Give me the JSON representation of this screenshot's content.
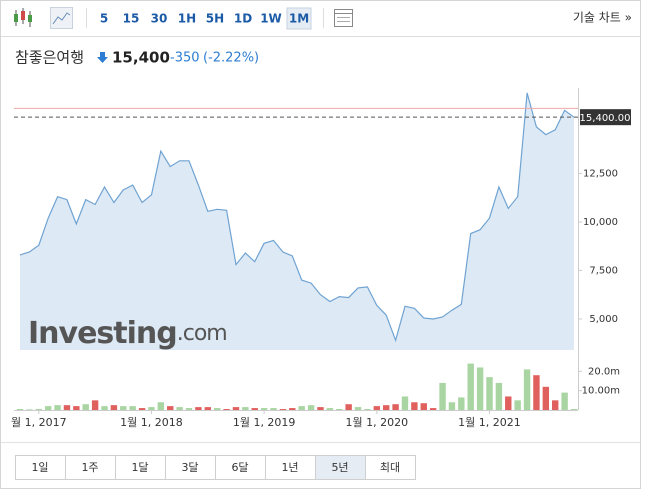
{
  "toolbar": {
    "intervals": [
      "5",
      "15",
      "30",
      "1H",
      "5H",
      "1D",
      "1W",
      "1M"
    ],
    "selected_interval": "1M",
    "technical_chart": "기술 차트 »"
  },
  "header": {
    "name": "참좋은여행",
    "price": "15,400",
    "change": "-350",
    "change_percent": "(-2.22%)"
  },
  "watermark": {
    "brand": "Investing",
    "suffix": ".com"
  },
  "chart_data": [
    {
      "type": "area",
      "color": "#6fa3d2",
      "fill": "#dde9f4",
      "x": [
        "2016-11",
        "2016-12",
        "2017-01",
        "2017-02",
        "2017-03",
        "2017-04",
        "2017-05",
        "2017-06",
        "2017-07",
        "2017-08",
        "2017-09",
        "2017-10",
        "2017-11",
        "2017-12",
        "2018-01",
        "2018-02",
        "2018-03",
        "2018-04",
        "2018-05",
        "2018-06",
        "2018-07",
        "2018-08",
        "2018-09",
        "2018-10",
        "2018-11",
        "2018-12",
        "2019-01",
        "2019-02",
        "2019-03",
        "2019-04",
        "2019-05",
        "2019-06",
        "2019-07",
        "2019-08",
        "2019-09",
        "2019-10",
        "2019-11",
        "2019-12",
        "2020-01",
        "2020-02",
        "2020-03",
        "2020-04",
        "2020-05",
        "2020-06",
        "2020-07",
        "2020-08",
        "2020-09",
        "2020-10",
        "2020-11",
        "2020-12",
        "2021-01",
        "2021-02",
        "2021-03",
        "2021-04",
        "2021-05",
        "2021-06",
        "2021-07",
        "2021-08",
        "2021-09",
        "2021-10"
      ],
      "values": [
        8300,
        8450,
        8800,
        10200,
        11300,
        11150,
        9900,
        11150,
        10900,
        11800,
        11000,
        11650,
        11900,
        11000,
        11400,
        13650,
        12850,
        13150,
        13150,
        11900,
        10550,
        10650,
        10600,
        7800,
        8400,
        7950,
        8900,
        9050,
        8450,
        8250,
        7000,
        6850,
        6250,
        5900,
        6150,
        6100,
        6600,
        6650,
        5700,
        5200,
        3900,
        5650,
        5550,
        5050,
        5000,
        5100,
        5450,
        5750,
        9400,
        9600,
        10200,
        11800,
        10700,
        11300,
        16650,
        14900,
        14500,
        14750,
        15750,
        15400
      ],
      "xlim": [
        "2016-11",
        "2021-10"
      ],
      "ylim": [
        3400,
        16800
      ],
      "yticks": [
        {
          "value": 5000,
          "label": "5,000"
        },
        {
          "value": 7500,
          "label": "7,500"
        },
        {
          "value": 10000,
          "label": "10,000"
        },
        {
          "value": 12500,
          "label": "12,500"
        }
      ],
      "high_line": {
        "value": 15850,
        "color": "#f0a8a8"
      },
      "last_price": {
        "value": 15400,
        "label": "15,400.00"
      }
    },
    {
      "type": "bar",
      "x": [
        "2016-11",
        "2016-12",
        "2017-01",
        "2017-02",
        "2017-03",
        "2017-04",
        "2017-05",
        "2017-06",
        "2017-07",
        "2017-08",
        "2017-09",
        "2017-10",
        "2017-11",
        "2017-12",
        "2018-01",
        "2018-02",
        "2018-03",
        "2018-04",
        "2018-05",
        "2018-06",
        "2018-07",
        "2018-08",
        "2018-09",
        "2018-10",
        "2018-11",
        "2018-12",
        "2019-01",
        "2019-02",
        "2019-03",
        "2019-04",
        "2019-05",
        "2019-06",
        "2019-07",
        "2019-08",
        "2019-09",
        "2019-10",
        "2019-11",
        "2019-12",
        "2020-01",
        "2020-02",
        "2020-03",
        "2020-04",
        "2020-05",
        "2020-06",
        "2020-07",
        "2020-08",
        "2020-09",
        "2020-10",
        "2020-11",
        "2020-12",
        "2021-01",
        "2021-02",
        "2021-03",
        "2021-04",
        "2021-05",
        "2021-06",
        "2021-07",
        "2021-08",
        "2021-09",
        "2021-10"
      ],
      "values": [
        500000,
        300000,
        500000,
        2000000,
        2500000,
        2500000,
        2000000,
        3000000,
        5000000,
        2000000,
        2500000,
        2000000,
        2000000,
        1000000,
        1500000,
        4000000,
        2000000,
        1500000,
        1000000,
        1500000,
        1500000,
        1000000,
        500000,
        1500000,
        1500000,
        1000000,
        1000000,
        1000000,
        500000,
        1000000,
        2000000,
        2500000,
        1500000,
        1000000,
        500000,
        3000000,
        1500000,
        500000,
        2000000,
        2500000,
        3000000,
        7000000,
        4000000,
        3500000,
        1000000,
        14000000,
        4000000,
        6500000,
        24000000,
        22000000,
        17000000,
        14000000,
        7000000,
        5000000,
        21000000,
        18000000,
        12000000,
        5000000,
        9000000,
        500000
      ],
      "colors": [
        "#a8d5a2",
        "#a8d5a2",
        "#a8d5a2",
        "#a8d5a2",
        "#a8d5a2",
        "#e0605e",
        "#e0605e",
        "#a8d5a2",
        "#e0605e",
        "#a8d5a2",
        "#e0605e",
        "#a8d5a2",
        "#a8d5a2",
        "#e0605e",
        "#a8d5a2",
        "#a8d5a2",
        "#e0605e",
        "#a8d5a2",
        "#a8d5a2",
        "#e0605e",
        "#e0605e",
        "#a8d5a2",
        "#e0605e",
        "#e0605e",
        "#a8d5a2",
        "#e0605e",
        "#a8d5a2",
        "#a8d5a2",
        "#e0605e",
        "#e0605e",
        "#a8d5a2",
        "#a8d5a2",
        "#e0605e",
        "#a8d5a2",
        "#a8d5a2",
        "#e0605e",
        "#a8d5a2",
        "#a8d5a2",
        "#e0605e",
        "#e0605e",
        "#e0605e",
        "#a8d5a2",
        "#e0605e",
        "#e0605e",
        "#e0605e",
        "#a8d5a2",
        "#a8d5a2",
        "#a8d5a2",
        "#a8d5a2",
        "#a8d5a2",
        "#a8d5a2",
        "#a8d5a2",
        "#e0605e",
        "#a8d5a2",
        "#a8d5a2",
        "#e0605e",
        "#e0605e",
        "#e0605e",
        "#a8d5a2",
        "#a8d5a2"
      ],
      "xlim": [
        "2016-11",
        "2021-10"
      ],
      "ylim": [
        0,
        30000000
      ],
      "yticks": [
        {
          "value": 10000000,
          "label": "10.00m"
        },
        {
          "value": 20000000,
          "label": "20.0m"
        }
      ],
      "xticks": [
        {
          "value": "2017-01",
          "label": "월 1, 2017"
        },
        {
          "value": "2018-01",
          "label": "1월 1, 2018"
        },
        {
          "value": "2019-01",
          "label": "1월 1, 2019"
        },
        {
          "value": "2020-01",
          "label": "1월 1, 2020"
        },
        {
          "value": "2021-01",
          "label": "1월 1, 2021"
        }
      ]
    }
  ],
  "ranges": {
    "buttons": [
      "1일",
      "1주",
      "1달",
      "3달",
      "6달",
      "1년",
      "5년",
      "최대"
    ],
    "selected": "5년"
  }
}
